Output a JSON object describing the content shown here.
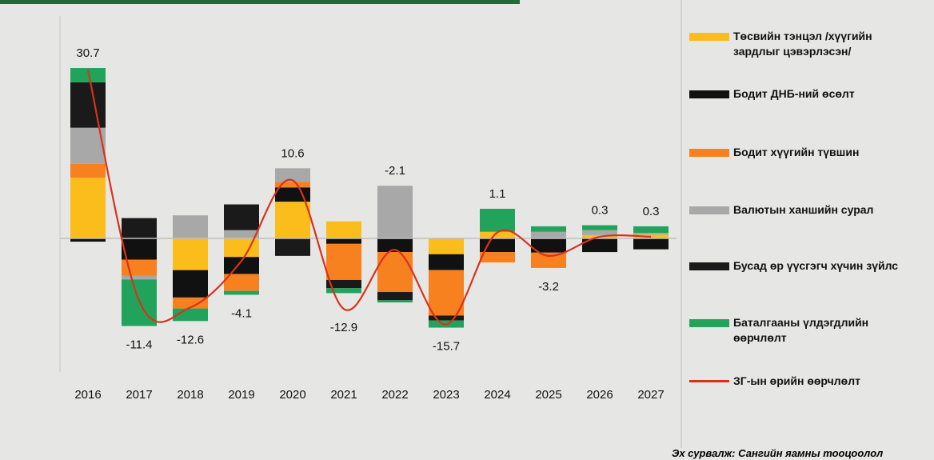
{
  "chart_data": {
    "type": "stacked_bar_line",
    "source": "Эх сурвалж: Сангийн яамны тооцоолол",
    "categories": [
      "2016",
      "2017",
      "2018",
      "2019",
      "2020",
      "2021",
      "2022",
      "2023",
      "2024",
      "2025",
      "2026",
      "2027"
    ],
    "series": [
      {
        "name": "Төсвийн тэнцэл /хүүгийн зардлыг цэвэрлэсэн/",
        "color": "#fbbd1c",
        "values": [
          11.1,
          0,
          -5.8,
          -3.4,
          6.7,
          3.1,
          0,
          -2.9,
          1.2,
          0,
          0.6,
          0.7
        ]
      },
      {
        "name": "Бодит ДНБ-ний өсөлт",
        "color": "#111111",
        "values": [
          -0.6,
          -3.9,
          -5.0,
          -3.1,
          2.6,
          -1.0,
          -2.5,
          -2.9,
          -2.5,
          -2.6,
          -2.5,
          -2.0
        ]
      },
      {
        "name": "Бодит хүүгийн түвшин",
        "color": "#f7801f",
        "values": [
          2.5,
          -2.9,
          -2.0,
          -3.1,
          1.0,
          -6.6,
          -7.3,
          -8.3,
          -1.9,
          -2.8,
          0,
          0
        ]
      },
      {
        "name": "Валютын ханшийн сурал",
        "color": "#a8a8a8",
        "values": [
          6.6,
          -0.7,
          4.2,
          1.5,
          2.5,
          0,
          9.6,
          0,
          0,
          1.2,
          0.9,
          0.3
        ]
      },
      {
        "name": "Бусад өр үүсгэгч хүчин зүйлс",
        "color": "#1a1a1a",
        "values": [
          8.3,
          3.7,
          0,
          4.7,
          -3.2,
          -1.5,
          -1.5,
          -0.9,
          0,
          0,
          0,
          0
        ]
      },
      {
        "name": "Баталгааны үлдэгдлийн өөрчлөлт",
        "color": "#22a35c",
        "values": [
          2.6,
          -8.5,
          -2.3,
          -0.7,
          0,
          -0.9,
          -0.4,
          -1.3,
          4.2,
          1.0,
          0.9,
          1.2
        ]
      }
    ],
    "line": {
      "name": "ЗГ-ын өрийн өөрчлөлт",
      "color": "#d8321c",
      "values": [
        30.7,
        -11.4,
        -12.6,
        -4.1,
        10.6,
        -12.9,
        -2.1,
        -15.7,
        1.1,
        -3.2,
        0.3,
        0.3
      ]
    },
    "ylim": [
      -24.4,
      40.6
    ]
  }
}
